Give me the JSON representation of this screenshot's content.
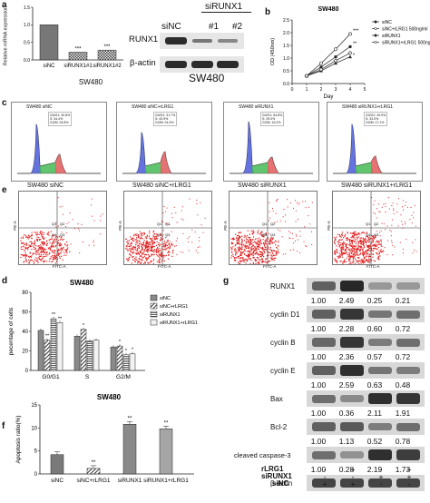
{
  "panel_a": {
    "letter": "a",
    "ylabel": "Relative mRNA expression",
    "yticks": [
      "0.0",
      "0.5",
      "1.0",
      "1.5"
    ],
    "categories": [
      "siNC",
      "siRUNX1#1",
      "siRUNX1#2"
    ],
    "values": [
      1.0,
      0.22,
      0.28
    ],
    "sig": [
      "",
      "***",
      "***"
    ],
    "cellline": "SW480",
    "blot_header_group": "siRUNX1",
    "blot_header_lanes": [
      "siNC",
      "#1",
      "#2"
    ],
    "blot_rows": [
      "RUNX1",
      "β-actin"
    ],
    "blot_cellline": "SW480"
  },
  "panel_b": {
    "letter": "b",
    "title": "SW480",
    "ylabel": "OD (450nm)",
    "xlabel": "Day",
    "xticks": [
      "0",
      "1",
      "2",
      "3",
      "4",
      "5"
    ],
    "yticks": [
      "0.0",
      "0.5",
      "1.0",
      "1.5",
      "2.0",
      "2.5"
    ],
    "legend": [
      "siNC",
      "siNC+rLRG1 500ng/ml",
      "siRUNX1",
      "siRUNX1+rLRG1 500ng/ml"
    ],
    "sig": [
      "***",
      "**",
      "*"
    ]
  },
  "panel_c": {
    "letter": "c",
    "titles": [
      "SW480 siNC",
      "SW480 siNC+rLRG1",
      "SW480 siRUNX1",
      "SW480 siRUNX1+rLRG1"
    ],
    "stats": [
      [
        "G0/G1: 40.8%",
        "S: 34.4%",
        "G2/M: 24.8%"
      ],
      [
        "G0/G1: 31.7%",
        "S: 43.9%",
        "G2/M: 24.4%"
      ],
      [
        "G0/G1: 54.8%",
        "S: 29.0%",
        "G2/M: 16.2%"
      ],
      [
        "G0/G1: 49.9%",
        "S: 33.0%",
        "G2/M: 17.1%"
      ]
    ]
  },
  "panel_e": {
    "letter": "e",
    "titles": [
      "SW480 siNC",
      "SW480 siNC+rLRG1",
      "SW480 siRUNX1",
      "SW480 siRUNX1+rLRG1"
    ],
    "xlabel": "FITC-A",
    "ylabel": "PE-A",
    "quads": [
      "Q1",
      "Q2",
      "Q3",
      "Q4"
    ]
  },
  "panel_d": {
    "letter": "d",
    "title": "SW480",
    "ylabel": "pecentage of cells",
    "yticks": [
      "0",
      "20",
      "40",
      "60",
      "80"
    ],
    "legend": [
      "siNC",
      "siNC+rLRG1",
      "siRUNX1",
      "siRUNX1+rLRG1"
    ]
  },
  "panel_f": {
    "letter": "f",
    "title": "SW480",
    "ylabel": "Apoptosis ratio(%)",
    "yticks": [
      "0",
      "5",
      "10",
      "15"
    ]
  },
  "panel_g": {
    "letter": "g",
    "rows": [
      {
        "label": "RUNX1",
        "values": [
          "1.00",
          "2.49",
          "0.25",
          "0.21"
        ]
      },
      {
        "label": "cyclin D1",
        "values": [
          "1.00",
          "2.28",
          "0.60",
          "0.72"
        ]
      },
      {
        "label": "cyclin B",
        "values": [
          "1.00",
          "2.36",
          "0.57",
          "0.72"
        ]
      },
      {
        "label": "cyclin E",
        "values": [
          "1.00",
          "2.59",
          "0.63",
          "0.48"
        ]
      },
      {
        "label": "Bax",
        "values": [
          "1.00",
          "0.36",
          "2.11",
          "1.91"
        ]
      },
      {
        "label": "Bcl-2",
        "values": [
          "1.00",
          "1.13",
          "0.52",
          "0.78"
        ]
      },
      {
        "label": "cleaved caspase-3",
        "values": [
          "1.00",
          "0.28",
          "2.19",
          "1.73"
        ]
      },
      {
        "label": "β-actin",
        "values": []
      }
    ],
    "conditions": [
      {
        "label": "rLRG1",
        "signs": [
          "-",
          "+",
          "-",
          "+"
        ]
      },
      {
        "label": "siRUNX1",
        "signs": [
          "-",
          "-",
          "+",
          "+"
        ]
      },
      {
        "label": "siNC",
        "signs": [
          "+",
          "+",
          "-",
          "-"
        ]
      }
    ]
  },
  "chart_data": [
    {
      "type": "bar",
      "ylabel": "Relative mRNA expression",
      "categories": [
        "siNC",
        "siRUNX1#1",
        "siRUNX1#2"
      ],
      "values": [
        1.0,
        0.22,
        0.28
      ],
      "ylim": [
        0,
        1.5
      ]
    },
    {
      "type": "line",
      "title": "SW480",
      "xlabel": "Day",
      "ylabel": "OD (450nm)",
      "x": [
        1,
        2,
        3,
        4
      ],
      "ylim": [
        0,
        2.5
      ],
      "series": [
        {
          "name": "siNC",
          "values": [
            0.3,
            0.65,
            1.05,
            1.45
          ]
        },
        {
          "name": "siNC+rLRG1 500ng/ml",
          "values": [
            0.3,
            0.8,
            1.35,
            1.95
          ]
        },
        {
          "name": "siRUNX1",
          "values": [
            0.3,
            0.5,
            0.8,
            1.05
          ]
        },
        {
          "name": "siRUNX1+rLRG1 500ng/ml",
          "values": [
            0.3,
            0.55,
            0.9,
            1.2
          ]
        }
      ]
    },
    {
      "type": "bar",
      "title": "SW480",
      "ylabel": "pecentage of cells",
      "categories": [
        "G0/G1",
        "S",
        "G2/M"
      ],
      "ylim": [
        0,
        80
      ],
      "series": [
        {
          "name": "siNC",
          "values": [
            41,
            35,
            24
          ]
        },
        {
          "name": "siNC+rLRG1",
          "values": [
            31,
            42,
            25
          ]
        },
        {
          "name": "siRUNX1",
          "values": [
            53,
            30,
            16
          ]
        },
        {
          "name": "siRUNX1+rLRG1",
          "values": [
            49,
            31,
            17
          ]
        }
      ],
      "sig": [
        [
          "",
          "**",
          "**",
          "**"
        ],
        [
          "",
          "*",
          "",
          ""
        ],
        [
          "",
          "*",
          "*",
          "*"
        ]
      ]
    },
    {
      "type": "bar",
      "title": "SW480",
      "ylabel": "Apoptosis ratio(%)",
      "categories": [
        "siNC",
        "siNC+rLRG1",
        "siRUNX1",
        "siRUNX1+rLRG1"
      ],
      "values": [
        4.2,
        1.2,
        10.8,
        9.8
      ],
      "ylim": [
        0,
        15
      ],
      "sig": [
        "",
        "**",
        "**",
        "**"
      ]
    }
  ],
  "colors": {
    "blot_band": "#2b2b2b",
    "blot_bg": "#d8d8d8",
    "flow_dots": "#e02020",
    "hist_g1": "#4a5bd8",
    "hist_s": "#39b54a",
    "hist_g2": "#e25b5b"
  }
}
